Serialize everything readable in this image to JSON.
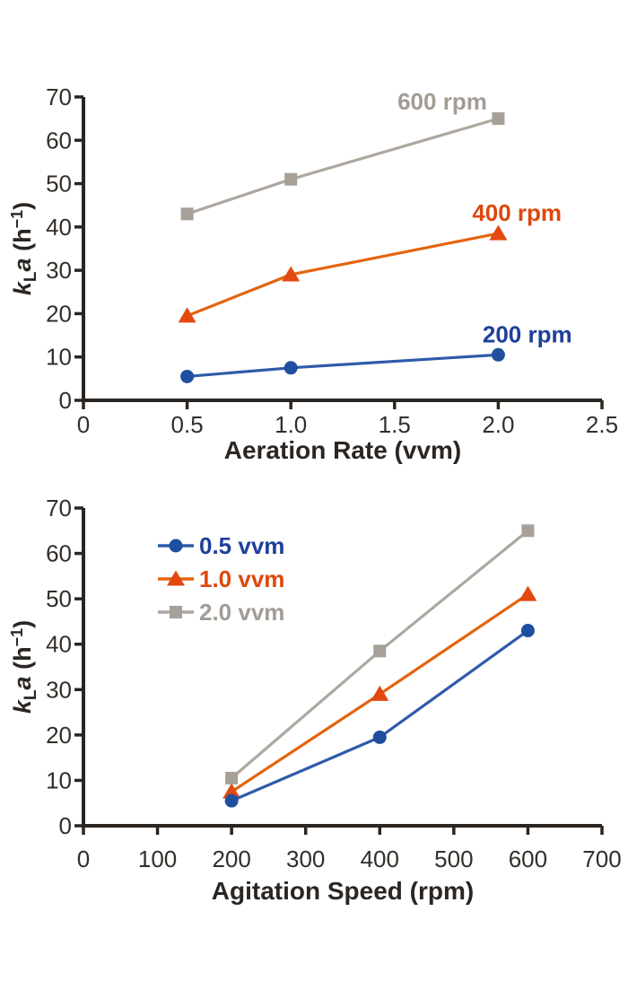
{
  "page": {
    "background": "#ffffff"
  },
  "style": {
    "axis_color": "#2b2521",
    "tick_text_color": "#332e29",
    "axis_label_color": "#2b2622"
  },
  "ylabel_parts": [
    {
      "t": "k",
      "s": "bi"
    },
    {
      "t": "L",
      "s": "sub"
    },
    {
      "t": "a",
      "s": "bi"
    },
    {
      "t": " (h",
      "s": "b"
    },
    {
      "t": "−1",
      "s": "sup"
    },
    {
      "t": ")",
      "s": "b"
    }
  ],
  "chart_data": [
    {
      "type": "line",
      "title": "",
      "xlabel": "Aeration Rate (vvm)",
      "ylabel": "kLa (h−1)",
      "xlim": [
        0,
        2.5
      ],
      "ylim": [
        0,
        70
      ],
      "grid": false,
      "legend_position": "none",
      "xticks": {
        "values": [
          0,
          0.5,
          1.0,
          1.5,
          2.0,
          2.5
        ],
        "labels": [
          "0",
          "0.5",
          "1.0",
          "1.5",
          "2.0",
          "2.5"
        ]
      },
      "yticks": {
        "values": [
          0,
          10,
          20,
          30,
          40,
          50,
          60,
          70
        ],
        "labels": [
          "0",
          "10",
          "20",
          "30",
          "40",
          "50",
          "60",
          "70"
        ]
      },
      "x": [
        0.5,
        1.0,
        2.0
      ],
      "series": [
        {
          "name": "600 rpm",
          "marker": "square",
          "marker_color": "#a6a098",
          "line_color": "#ada79f",
          "label_color": "#a29c94",
          "values": [
            43,
            51,
            65
          ],
          "label_at": [
            1.73,
            69.0
          ]
        },
        {
          "name": "400 rpm",
          "marker": "triangle",
          "marker_color": "#e2490e",
          "line_color": "#e4640e",
          "label_color": "#df470c",
          "values": [
            19.5,
            29,
            38.5
          ],
          "label_at": [
            2.09,
            43.3
          ]
        },
        {
          "name": "200 rpm",
          "marker": "circle",
          "marker_color": "#1f4f9e",
          "line_color": "#2e5baa",
          "label_color": "#1e3f9a",
          "values": [
            5.5,
            7.5,
            10.5
          ],
          "label_at": [
            2.14,
            15.2
          ]
        }
      ]
    },
    {
      "type": "line",
      "title": "",
      "xlabel": "Agitation Speed (rpm)",
      "ylabel": "kLa (h−1)",
      "xlim": [
        0,
        700
      ],
      "ylim": [
        0,
        70
      ],
      "grid": false,
      "legend_position": "upper-left",
      "legend_order": [
        "0.5 vvm",
        "1.0 vvm",
        "2.0 vvm"
      ],
      "xticks": {
        "values": [
          0,
          100,
          200,
          300,
          400,
          500,
          600,
          700
        ],
        "labels": [
          "0",
          "100",
          "200",
          "300",
          "400",
          "500",
          "600",
          "700"
        ]
      },
      "yticks": {
        "values": [
          0,
          10,
          20,
          30,
          40,
          50,
          60,
          70
        ],
        "labels": [
          "0",
          "10",
          "20",
          "30",
          "40",
          "50",
          "60",
          "70"
        ]
      },
      "x": [
        200,
        400,
        600
      ],
      "series": [
        {
          "name": "2.0 vvm",
          "marker": "square",
          "marker_color": "#a6a098",
          "line_color": "#ada79f",
          "label_color": "#a29c94",
          "values": [
            10.5,
            38.5,
            65
          ]
        },
        {
          "name": "1.0 vvm",
          "marker": "triangle",
          "marker_color": "#e2490e",
          "line_color": "#e4640e",
          "label_color": "#df470c",
          "values": [
            7.5,
            29,
            51
          ]
        },
        {
          "name": "0.5 vvm",
          "marker": "circle",
          "marker_color": "#1f4f9e",
          "line_color": "#2e5baa",
          "label_color": "#1e3f9a",
          "values": [
            5.5,
            19.5,
            43
          ]
        }
      ]
    }
  ]
}
